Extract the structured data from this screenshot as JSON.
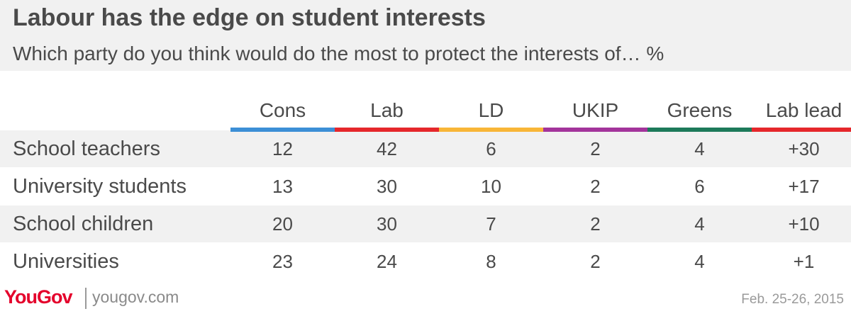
{
  "chart_data": {
    "type": "table",
    "title": "Labour has the edge on student interests",
    "subtitle": "Which party do you think would do the most to protect the interests of… %",
    "columns": [
      {
        "name": "Cons",
        "color": "#3c8fd6"
      },
      {
        "name": "Lab",
        "color": "#e5272b"
      },
      {
        "name": "LD",
        "color": "#f8b637"
      },
      {
        "name": "UKIP",
        "color": "#a3349b"
      },
      {
        "name": "Greens",
        "color": "#1d7a5a"
      },
      {
        "name": "Lab lead",
        "color": "#e5272b"
      }
    ],
    "rows": [
      {
        "label": "School teachers",
        "values": [
          "12",
          "42",
          "6",
          "2",
          "4",
          "+30"
        ]
      },
      {
        "label": "University students",
        "values": [
          "13",
          "30",
          "10",
          "2",
          "6",
          "+17"
        ]
      },
      {
        "label": "School children",
        "values": [
          "20",
          "30",
          "7",
          "2",
          "4",
          "+10"
        ]
      },
      {
        "label": "Universities",
        "values": [
          "23",
          "24",
          "8",
          "2",
          "4",
          "+1"
        ]
      }
    ]
  },
  "footer": {
    "logo": "YouGov",
    "site": "yougov.com",
    "date": "Feb. 25-26, 2015"
  },
  "colors": {
    "header_bg": "#f1f1f1",
    "text": "#4a4a4a",
    "brand": "#e4002b"
  }
}
